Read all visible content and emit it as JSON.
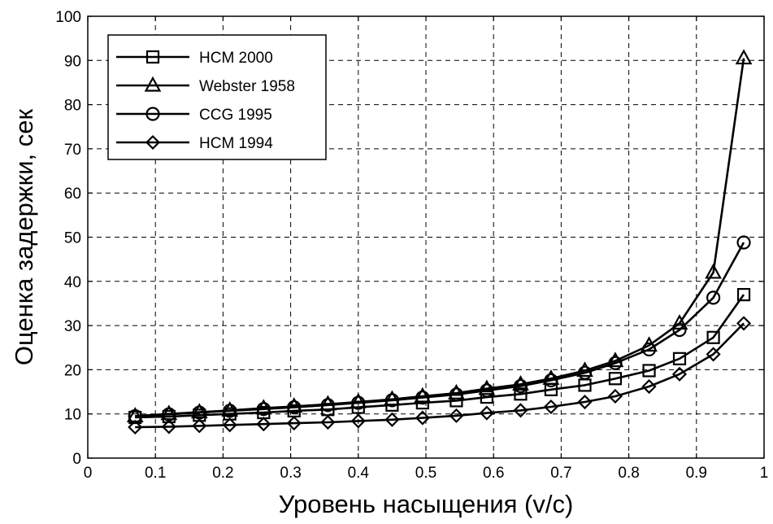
{
  "chart_data": {
    "type": "line",
    "xlabel": "Уровень насыщения (v/c)",
    "ylabel": "Оценка задержки, сек",
    "xlim": [
      0,
      1
    ],
    "ylim": [
      0,
      100
    ],
    "xticks": [
      0,
      0.1,
      0.2,
      0.3,
      0.4,
      0.5,
      0.6,
      0.7,
      0.8,
      0.9,
      1
    ],
    "xtick_labels": [
      "0",
      "0.1",
      "0.2",
      "0.3",
      "0.4",
      "0.5",
      "0.6",
      "0.7",
      "0.8",
      "0.9",
      "1"
    ],
    "yticks": [
      0,
      10,
      20,
      30,
      40,
      50,
      60,
      70,
      80,
      90,
      100
    ],
    "ytick_labels": [
      "0",
      "10",
      "20",
      "30",
      "40",
      "50",
      "60",
      "70",
      "80",
      "90",
      "100"
    ],
    "grid": true,
    "legend_position": "top-left",
    "x": [
      0.07,
      0.12,
      0.165,
      0.21,
      0.26,
      0.305,
      0.355,
      0.4,
      0.45,
      0.495,
      0.545,
      0.59,
      0.64,
      0.685,
      0.735,
      0.78,
      0.83,
      0.875,
      0.925,
      0.97
    ],
    "series": [
      {
        "name": "HCM 2000",
        "marker": "square",
        "values": [
          9.2,
          9.4,
          9.7,
          10.0,
          10.3,
          10.7,
          11.0,
          11.5,
          12.0,
          12.5,
          13.0,
          13.8,
          14.5,
          15.5,
          16.5,
          18.0,
          19.8,
          22.5,
          27.3,
          37.0
        ]
      },
      {
        "name": "Webster 1958",
        "marker": "triangle",
        "values": [
          9.5,
          10.0,
          10.4,
          10.8,
          11.3,
          11.7,
          12.2,
          12.7,
          13.3,
          14.0,
          14.7,
          15.7,
          16.7,
          18.0,
          19.8,
          22.0,
          25.5,
          30.5,
          42.0,
          90.5
        ]
      },
      {
        "name": "CCG 1995",
        "marker": "circle",
        "values": [
          9.5,
          9.9,
          10.3,
          10.7,
          11.1,
          11.5,
          12.0,
          12.5,
          13.1,
          13.7,
          14.4,
          15.3,
          16.3,
          17.6,
          19.3,
          21.5,
          24.6,
          29.0,
          36.3,
          48.8
        ]
      },
      {
        "name": "HCM 1994",
        "marker": "diamond",
        "values": [
          7.0,
          7.1,
          7.3,
          7.5,
          7.7,
          7.9,
          8.1,
          8.4,
          8.7,
          9.1,
          9.6,
          10.2,
          10.8,
          11.6,
          12.7,
          14.0,
          16.2,
          19.0,
          23.5,
          30.5
        ]
      }
    ]
  }
}
